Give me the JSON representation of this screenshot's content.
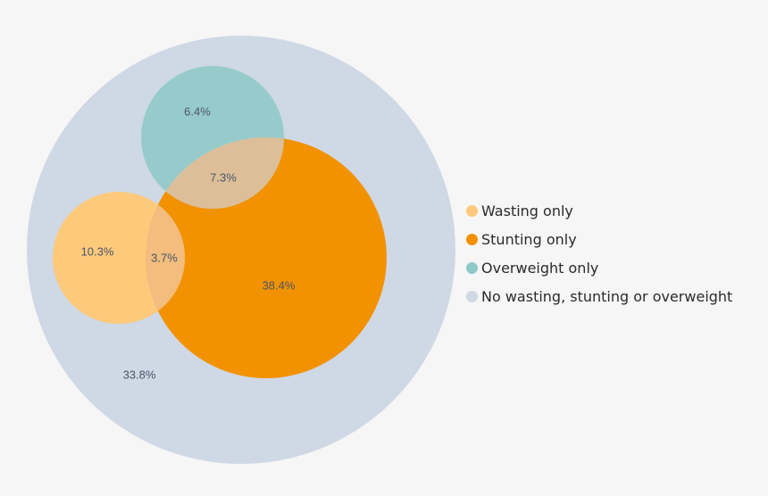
{
  "chart_data": {
    "type": "venn",
    "title": "",
    "regions": [
      {
        "key": "overweight_only",
        "label": "6.4%",
        "value": 6.4
      },
      {
        "key": "stunting_overweight",
        "label": "7.3%",
        "value": 7.3
      },
      {
        "key": "wasting_only",
        "label": "10.3%",
        "value": 10.3
      },
      {
        "key": "wasting_stunting",
        "label": "3.7%",
        "value": 3.7
      },
      {
        "key": "stunting_only",
        "label": "38.4%",
        "value": 38.4
      },
      {
        "key": "none",
        "label": "33.8%",
        "value": 33.8
      }
    ],
    "legend": {
      "position": "right",
      "items": [
        {
          "label": "Wasting only",
          "color": "#fdc97b"
        },
        {
          "label": "Stunting only",
          "color": "#f39200"
        },
        {
          "label": "Overweight only",
          "color": "#8ec9c9"
        },
        {
          "label": "No wasting, stunting or overweight",
          "color": "#cfd8e5"
        }
      ]
    },
    "colors": {
      "none": "#cfd8e5",
      "stunting": "#f39200",
      "wasting": "#fdc97b",
      "overweight": "#97cbcb",
      "stunting_overweight": "#dcbf98",
      "wasting_stunting": "#f2bd7e"
    }
  }
}
